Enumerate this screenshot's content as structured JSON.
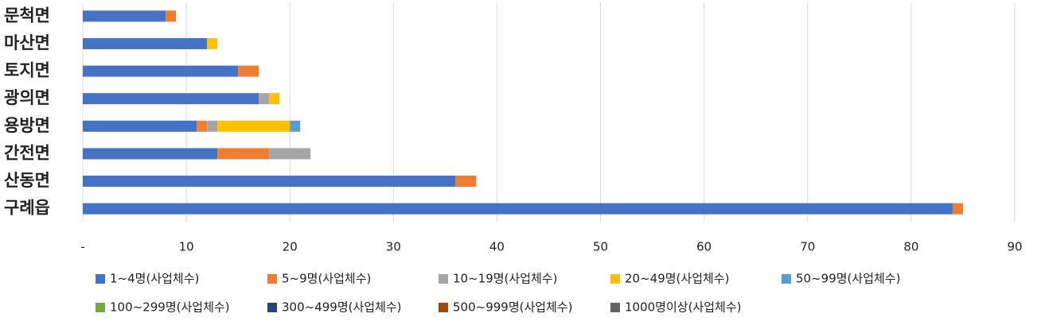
{
  "chart_data": {
    "type": "stacked-barh",
    "categories": [
      "문척면",
      "마산면",
      "토지면",
      "광의면",
      "용방면",
      "간전면",
      "산동면",
      "구례읍"
    ],
    "series": [
      {
        "name": "1~4명(사업체수)",
        "color": "#4472c4",
        "values": [
          8,
          12,
          15,
          17,
          11,
          13,
          36,
          84
        ]
      },
      {
        "name": "5~9명(사업체수)",
        "color": "#ed7d31",
        "values": [
          1,
          0,
          2,
          0,
          1,
          5,
          2,
          1
        ]
      },
      {
        "name": "10~19명(사업체수)",
        "color": "#a5a5a5",
        "values": [
          0,
          0,
          0,
          1,
          1,
          4,
          0,
          0
        ]
      },
      {
        "name": "20~49명(사업체수)",
        "color": "#ffc000",
        "values": [
          0,
          1,
          0,
          1,
          7,
          0,
          0,
          0
        ]
      },
      {
        "name": "50~99명(사업체수)",
        "color": "#5b9bd5",
        "values": [
          0,
          0,
          0,
          0,
          1,
          0,
          0,
          0
        ]
      },
      {
        "name": "100~299명(사업체수)",
        "color": "#70ad47",
        "values": [
          0,
          0,
          0,
          0,
          0,
          0,
          0,
          0
        ]
      },
      {
        "name": "300~499명(사업체수)",
        "color": "#264478",
        "values": [
          0,
          0,
          0,
          0,
          0,
          0,
          0,
          0
        ]
      },
      {
        "name": "500~999명(사업체수)",
        "color": "#9e480e",
        "values": [
          0,
          0,
          0,
          0,
          0,
          0,
          0,
          0
        ]
      },
      {
        "name": "1000명이상(사업체수)",
        "color": "#636363",
        "values": [
          0,
          0,
          0,
          0,
          0,
          0,
          0,
          0
        ]
      }
    ],
    "xlim": [
      0,
      90
    ],
    "xticks": [
      {
        "value": 0,
        "label": "-"
      },
      10,
      20,
      30,
      40,
      50,
      60,
      70,
      80,
      90
    ],
    "grid": true
  }
}
